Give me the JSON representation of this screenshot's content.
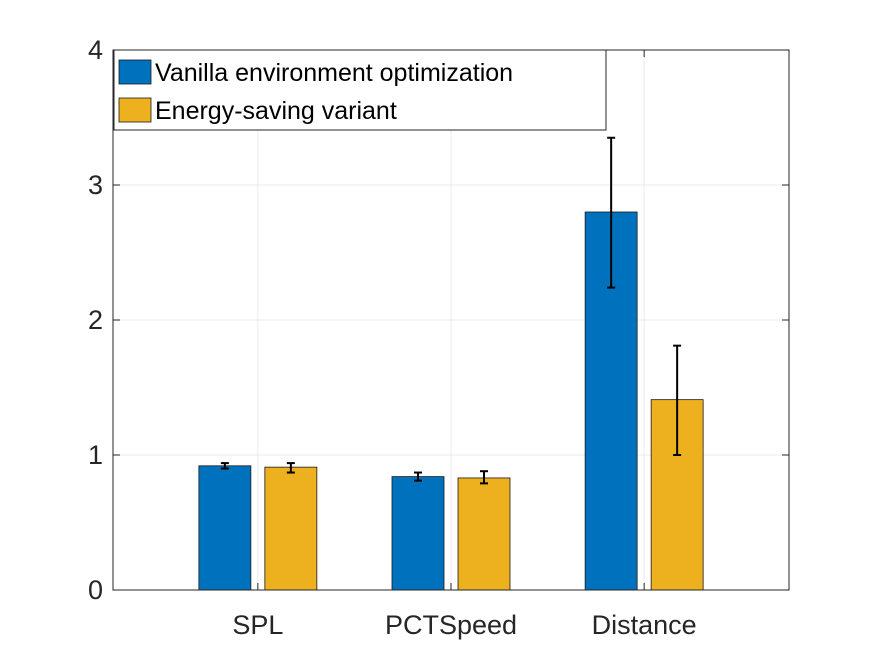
{
  "chart_data": {
    "type": "bar",
    "categories": [
      "SPL",
      "PCTSpeed",
      "Distance"
    ],
    "series": [
      {
        "name": "Vanilla environment optimization",
        "color": "#0072bd",
        "values": [
          0.92,
          0.84,
          2.8
        ],
        "error_low": [
          0.9,
          0.81,
          2.24
        ],
        "error_high": [
          0.94,
          0.87,
          3.35
        ]
      },
      {
        "name": "Energy-saving variant",
        "color": "#edb120",
        "values": [
          0.91,
          0.83,
          1.41
        ],
        "error_low": [
          0.87,
          0.79,
          1.0
        ],
        "error_high": [
          0.94,
          0.88,
          1.81
        ]
      }
    ],
    "ylim": [
      0,
      4
    ],
    "yticks": [
      "0",
      "1",
      "2",
      "3",
      "4"
    ],
    "grid": true,
    "legend_position": "top-left",
    "title": "",
    "xlabel": "",
    "ylabel": ""
  }
}
